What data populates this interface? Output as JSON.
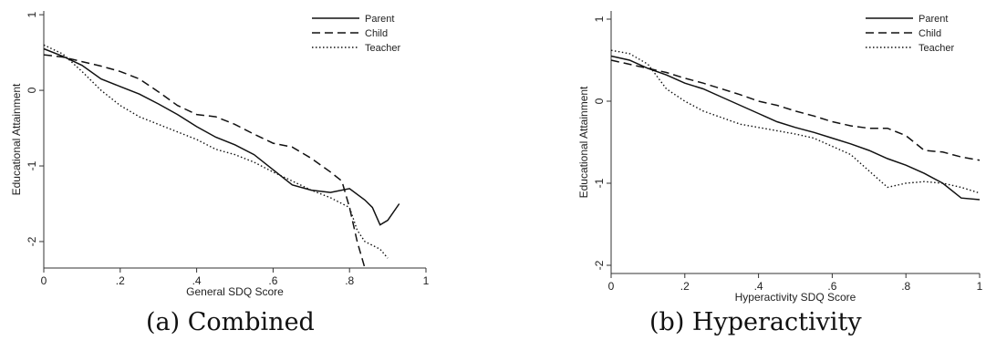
{
  "captions": {
    "a": "(a) Combined",
    "b": "(b) Hyperactivity"
  },
  "chart_data": [
    {
      "type": "line",
      "xlabel": "General SDQ Score",
      "ylabel": "Educational Attainment",
      "xlim": [
        0,
        1
      ],
      "ylim": [
        -2.35,
        1.05
      ],
      "xticks": [
        0,
        0.2,
        0.4,
        0.6,
        0.8,
        1
      ],
      "xtick_labels": [
        "0",
        ".2",
        ".4",
        ".6",
        ".8",
        "1"
      ],
      "yticks": [
        1,
        0,
        -1,
        -2
      ],
      "ytick_labels": [
        "1",
        "0",
        "-1",
        "-2"
      ],
      "grid": false,
      "legend_position": "top-right",
      "series": [
        {
          "name": "Parent",
          "style": "solid",
          "x": [
            0,
            0.05,
            0.1,
            0.15,
            0.2,
            0.25,
            0.3,
            0.35,
            0.4,
            0.45,
            0.5,
            0.55,
            0.6,
            0.65,
            0.7,
            0.75,
            0.8,
            0.84,
            0.86,
            0.88,
            0.9,
            0.93
          ],
          "y": [
            0.55,
            0.45,
            0.33,
            0.15,
            0.05,
            -0.05,
            -0.18,
            -0.32,
            -0.48,
            -0.62,
            -0.72,
            -0.85,
            -1.05,
            -1.25,
            -1.32,
            -1.35,
            -1.3,
            -1.45,
            -1.55,
            -1.78,
            -1.72,
            -1.5
          ]
        },
        {
          "name": "Child",
          "style": "dashed",
          "x": [
            0,
            0.05,
            0.1,
            0.15,
            0.2,
            0.25,
            0.3,
            0.35,
            0.4,
            0.45,
            0.5,
            0.55,
            0.6,
            0.65,
            0.7,
            0.75,
            0.78,
            0.8,
            0.82,
            0.84
          ],
          "y": [
            0.47,
            0.44,
            0.38,
            0.32,
            0.25,
            0.15,
            -0.02,
            -0.2,
            -0.32,
            -0.35,
            -0.45,
            -0.58,
            -0.7,
            -0.75,
            -0.9,
            -1.08,
            -1.2,
            -1.55,
            -2.0,
            -2.35
          ]
        },
        {
          "name": "Teacher",
          "style": "dotted",
          "x": [
            0,
            0.05,
            0.1,
            0.15,
            0.2,
            0.25,
            0.3,
            0.35,
            0.4,
            0.45,
            0.5,
            0.55,
            0.6,
            0.65,
            0.7,
            0.75,
            0.8,
            0.82,
            0.84,
            0.86,
            0.88,
            0.9
          ],
          "y": [
            0.6,
            0.48,
            0.25,
            0.0,
            -0.2,
            -0.35,
            -0.45,
            -0.55,
            -0.65,
            -0.78,
            -0.85,
            -0.95,
            -1.08,
            -1.2,
            -1.32,
            -1.42,
            -1.55,
            -1.85,
            -2.0,
            -2.05,
            -2.1,
            -2.22
          ]
        }
      ]
    },
    {
      "type": "line",
      "xlabel": "Hyperactivity SDQ Score",
      "ylabel": "Educational Attainment",
      "xlim": [
        0,
        1
      ],
      "ylim": [
        -2.1,
        1.1
      ],
      "xticks": [
        0,
        0.2,
        0.4,
        0.6,
        0.8,
        1
      ],
      "xtick_labels": [
        "0",
        ".2",
        ".4",
        ".6",
        ".8",
        "1"
      ],
      "yticks": [
        1,
        0,
        -1,
        -2
      ],
      "ytick_labels": [
        "1",
        "0",
        "-1",
        "-2"
      ],
      "grid": false,
      "legend_position": "top-right",
      "series": [
        {
          "name": "Parent",
          "style": "solid",
          "x": [
            0,
            0.05,
            0.1,
            0.15,
            0.2,
            0.25,
            0.3,
            0.35,
            0.4,
            0.45,
            0.5,
            0.55,
            0.6,
            0.65,
            0.7,
            0.75,
            0.8,
            0.85,
            0.9,
            0.95,
            1.0
          ],
          "y": [
            0.55,
            0.5,
            0.4,
            0.32,
            0.22,
            0.15,
            0.05,
            -0.05,
            -0.15,
            -0.25,
            -0.32,
            -0.38,
            -0.45,
            -0.52,
            -0.6,
            -0.7,
            -0.78,
            -0.88,
            -1.0,
            -1.18,
            -1.2
          ]
        },
        {
          "name": "Child",
          "style": "dashed",
          "x": [
            0,
            0.05,
            0.1,
            0.15,
            0.2,
            0.25,
            0.3,
            0.35,
            0.4,
            0.45,
            0.5,
            0.55,
            0.6,
            0.65,
            0.7,
            0.75,
            0.8,
            0.85,
            0.9,
            0.95,
            1.0
          ],
          "y": [
            0.5,
            0.45,
            0.4,
            0.35,
            0.28,
            0.22,
            0.15,
            0.08,
            0.0,
            -0.05,
            -0.12,
            -0.18,
            -0.25,
            -0.3,
            -0.33,
            -0.33,
            -0.42,
            -0.6,
            -0.62,
            -0.68,
            -0.72
          ]
        },
        {
          "name": "Teacher",
          "style": "dotted",
          "x": [
            0,
            0.05,
            0.1,
            0.15,
            0.2,
            0.25,
            0.3,
            0.35,
            0.4,
            0.45,
            0.5,
            0.55,
            0.6,
            0.65,
            0.7,
            0.75,
            0.8,
            0.85,
            0.9,
            0.95,
            1.0
          ],
          "y": [
            0.62,
            0.58,
            0.45,
            0.15,
            0.0,
            -0.12,
            -0.2,
            -0.28,
            -0.32,
            -0.36,
            -0.4,
            -0.45,
            -0.55,
            -0.65,
            -0.85,
            -1.05,
            -1.0,
            -0.98,
            -1.0,
            -1.05,
            -1.12
          ]
        }
      ]
    }
  ]
}
